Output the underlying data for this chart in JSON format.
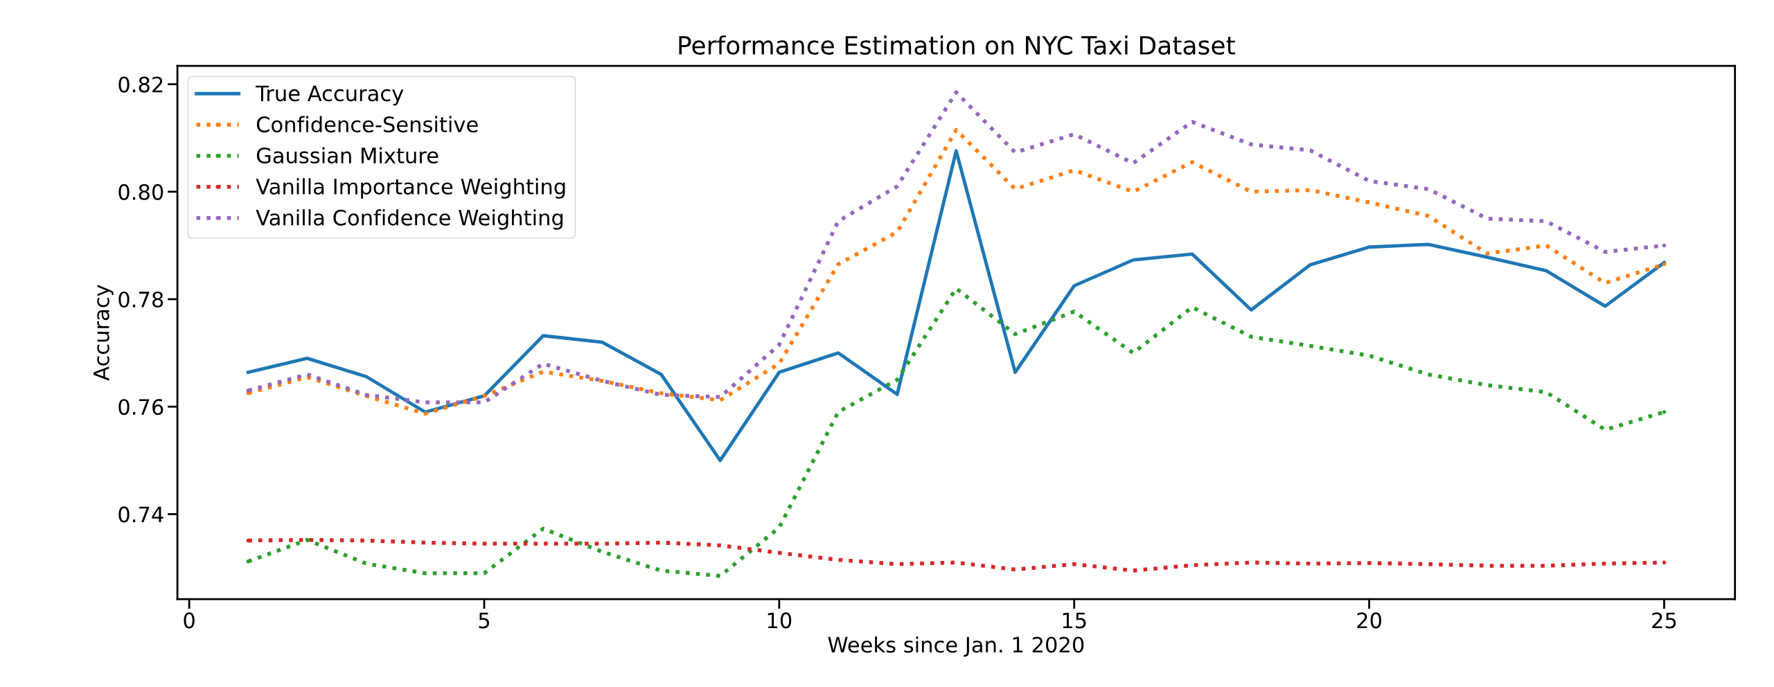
{
  "chart_data": {
    "type": "line",
    "title": "Performance Estimation on NYC Taxi Dataset",
    "xlabel": "Weeks since Jan. 1 2020",
    "ylabel": "Accuracy",
    "x": [
      1,
      2,
      3,
      4,
      5,
      6,
      7,
      8,
      9,
      10,
      11,
      12,
      13,
      14,
      15,
      16,
      17,
      18,
      19,
      20,
      21,
      22,
      23,
      24,
      25
    ],
    "xlim": [
      -0.2,
      26.2
    ],
    "xticks": [
      0,
      5,
      10,
      15,
      20,
      25
    ],
    "ylim": [
      0.7242,
      0.8234
    ],
    "yticks": [
      0.74,
      0.76,
      0.78,
      {
        "value": 0.8,
        "label": "0.80"
      },
      0.82
    ],
    "grid": false,
    "legend": "top left",
    "marker": "none",
    "series": [
      {
        "name": "True Accuracy",
        "color": "#1f77b4",
        "line_style": "solid",
        "values": [
          0.7664,
          0.769,
          0.7656,
          0.759,
          0.762,
          0.7732,
          0.772,
          0.766,
          0.75,
          0.7664,
          0.77,
          0.7623,
          0.8076,
          0.7664,
          0.7825,
          0.7873,
          0.7884,
          0.778,
          0.7864,
          0.7897,
          0.7902,
          0.7878,
          0.7853,
          0.7787,
          0.7868
        ]
      },
      {
        "name": "Confidence-Sensitive",
        "color": "#ff7f0e",
        "line_style": "dotted",
        "values": [
          0.7625,
          0.7655,
          0.762,
          0.7587,
          0.762,
          0.7665,
          0.7648,
          0.7625,
          0.7612,
          0.768,
          0.7865,
          0.7925,
          0.8115,
          0.8005,
          0.804,
          0.8,
          0.8055,
          0.8,
          0.8003,
          0.798,
          0.7955,
          0.7885,
          0.79,
          0.783,
          0.7865
        ]
      },
      {
        "name": "Gaussian Mixture",
        "color": "#2ca02c",
        "line_style": "dotted",
        "values": [
          0.7312,
          0.7352,
          0.7308,
          0.729,
          0.729,
          0.7373,
          0.733,
          0.7295,
          0.7285,
          0.7375,
          0.759,
          0.765,
          0.782,
          0.7735,
          0.7777,
          0.77,
          0.7785,
          0.773,
          0.7713,
          0.7695,
          0.766,
          0.764,
          0.7627,
          0.7557,
          0.759
        ]
      },
      {
        "name": "Vanilla Importance Weighting",
        "color": "#d62728",
        "line_style": "dotted",
        "values": [
          0.7351,
          0.7352,
          0.7351,
          0.7347,
          0.7345,
          0.7345,
          0.7345,
          0.7347,
          0.7342,
          0.7328,
          0.7315,
          0.7307,
          0.731,
          0.7297,
          0.7307,
          0.7295,
          0.7305,
          0.731,
          0.7308,
          0.7309,
          0.7307,
          0.7304,
          0.7304,
          0.7308,
          0.731
        ]
      },
      {
        "name": "Vanilla Confidence Weighting",
        "color": "#9467bd",
        "line_style": "dotted",
        "values": [
          0.763,
          0.766,
          0.7622,
          0.7608,
          0.7608,
          0.768,
          0.7648,
          0.7622,
          0.7618,
          0.7715,
          0.7945,
          0.801,
          0.8185,
          0.8073,
          0.8107,
          0.8053,
          0.813,
          0.8088,
          0.8077,
          0.802,
          0.8005,
          0.795,
          0.7945,
          0.7888,
          0.79
        ]
      }
    ]
  }
}
